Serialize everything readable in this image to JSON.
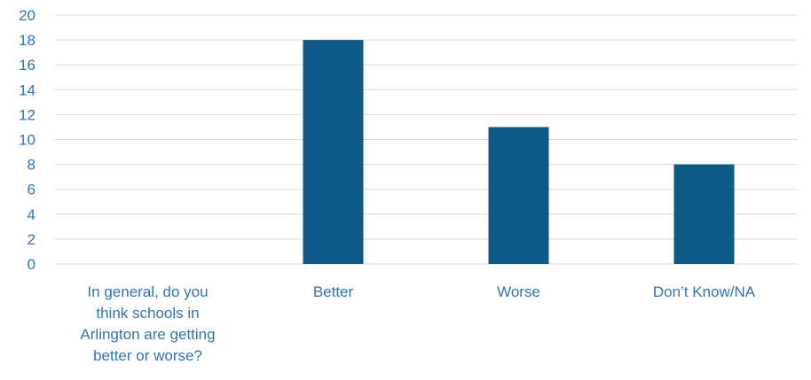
{
  "chart_data": {
    "type": "bar",
    "categories": [
      "In general, do you think schools in Arlington are getting better or worse?",
      "Better",
      "Worse",
      "Don’t Know/NA"
    ],
    "category_label_lines": [
      [
        "In general, do you",
        "think schools in",
        "Arlington are getting",
        "better or worse?"
      ],
      [
        "Better"
      ],
      [
        "Worse"
      ],
      [
        "Don’t Know/NA"
      ]
    ],
    "values": [
      0,
      18,
      11,
      8
    ],
    "ylim": [
      0,
      20
    ],
    "yticks": [
      0,
      2,
      4,
      6,
      8,
      10,
      12,
      14,
      16,
      18,
      20
    ],
    "grid": true,
    "title": "",
    "xlabel": "",
    "ylabel": ""
  },
  "colors": {
    "bar": "#0e5a87",
    "grid": "#d9d9d9",
    "label": "#2e75b6"
  }
}
